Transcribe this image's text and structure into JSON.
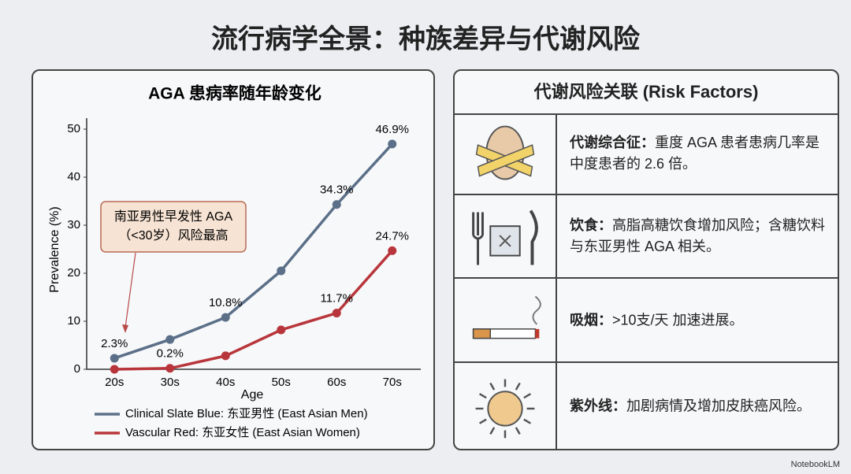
{
  "title": "流行病学全景：种族差异与代谢风险",
  "chart_data": {
    "type": "line",
    "title": "AGA 患病率随年龄变化",
    "x_label": "Age",
    "y_label": "Prevalence (%)",
    "categories": [
      "20s",
      "30s",
      "40s",
      "50s",
      "60s",
      "70s"
    ],
    "series": [
      {
        "name": "Clinical Slate Blue: 东亚男性 (East Asian Men)",
        "color": "#5b7088",
        "values": [
          2.3,
          6.2,
          10.8,
          20.5,
          34.3,
          46.9
        ],
        "value_labels": [
          "2.3%",
          null,
          "10.8%",
          null,
          "34.3%",
          "46.9%"
        ]
      },
      {
        "name": "Vascular Red: 东亚女性 (East Asian Women)",
        "color": "#b8363b",
        "values": [
          0,
          0.2,
          2.8,
          8.2,
          11.7,
          24.7
        ],
        "value_labels": [
          null,
          "0.2%",
          null,
          null,
          "11.7%",
          "24.7%"
        ]
      }
    ],
    "ylim": [
      0,
      50
    ],
    "yticks": [
      0,
      10,
      20,
      30,
      40,
      50
    ],
    "grid": false,
    "annotation": [
      "南亚男性早发性 AGA",
      "（<30岁）风险最高"
    ]
  },
  "risk_panel": {
    "title": "代谢风险关联 (Risk Factors)",
    "rows": [
      {
        "label": "代谢综合征：",
        "text": "重度 AGA 患者患病几率是中度患者的 2.6 倍。"
      },
      {
        "label": "饮食：",
        "text": "高脂高糖饮食增加风险；含糖饮料与东亚男性 AGA 相关。"
      },
      {
        "label": "吸烟：",
        "text": ">10支/天 加速进展。"
      },
      {
        "label": "紫外线：",
        "text": "加剧病情及增加皮肤癌风险。"
      }
    ]
  },
  "watermark": "NotebookLM"
}
